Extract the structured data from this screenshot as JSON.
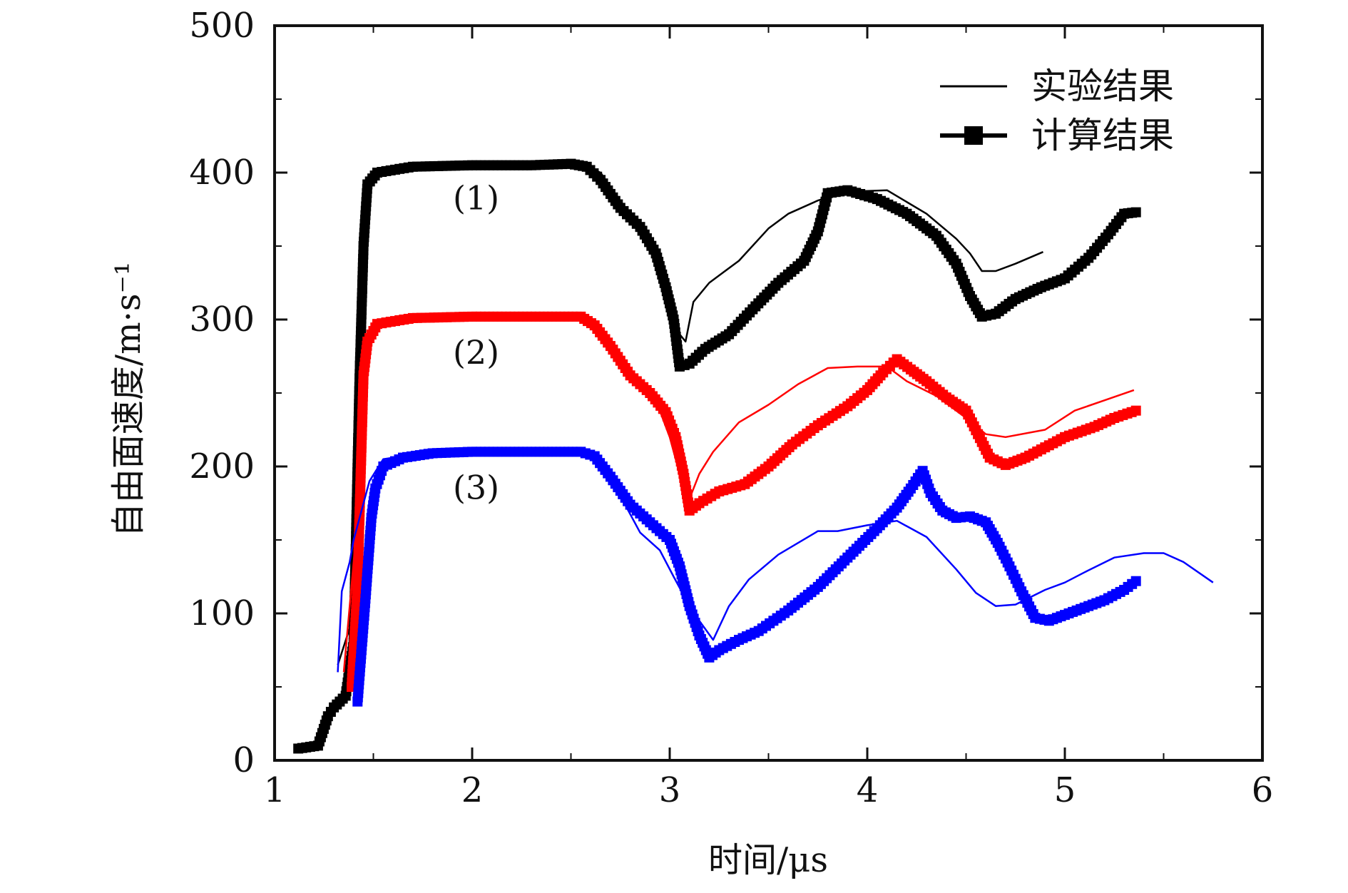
{
  "chart_data": {
    "type": "line",
    "title": "",
    "xlabel": "时间/μs",
    "ylabel": "自由面速度/m·s⁻¹",
    "xlim": [
      1,
      6
    ],
    "ylim": [
      0,
      500
    ],
    "x_ticks": [
      "1",
      "2",
      "3",
      "4",
      "5",
      "6"
    ],
    "y_ticks": [
      "0",
      "100",
      "200",
      "300",
      "400",
      "500"
    ],
    "grid": false,
    "legend_position": "top-right",
    "legend": [
      {
        "label": "实验结果",
        "style": "line"
      },
      {
        "label": "计算结果",
        "style": "line-square-markers"
      }
    ],
    "curve_labels": [
      {
        "text": "(1)",
        "x": 2.02,
        "y": 375
      },
      {
        "text": "(2)",
        "x": 2.02,
        "y": 270
      },
      {
        "text": "(3)",
        "x": 2.02,
        "y": 178
      }
    ],
    "series": [
      {
        "name": "(1) 实验结果",
        "kind": "experiment",
        "color": "#000000",
        "points": [
          [
            1.32,
            65
          ],
          [
            1.38,
            90
          ],
          [
            1.41,
            230
          ],
          [
            1.44,
            330
          ],
          [
            1.46,
            385
          ],
          [
            1.5,
            398
          ],
          [
            1.7,
            404
          ],
          [
            2.0,
            405
          ],
          [
            2.4,
            405
          ],
          [
            2.55,
            406
          ],
          [
            2.65,
            400
          ],
          [
            2.78,
            375
          ],
          [
            2.92,
            350
          ],
          [
            3.0,
            318
          ],
          [
            3.05,
            290
          ],
          [
            3.08,
            285
          ],
          [
            3.12,
            312
          ],
          [
            3.2,
            325
          ],
          [
            3.35,
            340
          ],
          [
            3.5,
            362
          ],
          [
            3.6,
            372
          ],
          [
            3.75,
            381
          ],
          [
            3.9,
            387
          ],
          [
            4.1,
            388
          ],
          [
            4.3,
            372
          ],
          [
            4.45,
            355
          ],
          [
            4.52,
            345
          ],
          [
            4.58,
            333
          ],
          [
            4.65,
            333
          ],
          [
            4.75,
            338
          ],
          [
            4.89,
            346
          ]
        ]
      },
      {
        "name": "(1) 计算结果",
        "kind": "calculation",
        "color": "#000000",
        "points": [
          [
            1.12,
            8
          ],
          [
            1.22,
            10
          ],
          [
            1.27,
            30
          ],
          [
            1.3,
            36
          ],
          [
            1.36,
            44
          ],
          [
            1.4,
            80
          ],
          [
            1.43,
            260
          ],
          [
            1.45,
            350
          ],
          [
            1.47,
            392
          ],
          [
            1.52,
            400
          ],
          [
            1.7,
            404
          ],
          [
            2.0,
            405
          ],
          [
            2.3,
            405
          ],
          [
            2.5,
            406
          ],
          [
            2.58,
            404
          ],
          [
            2.65,
            395
          ],
          [
            2.75,
            376
          ],
          [
            2.85,
            363
          ],
          [
            2.93,
            345
          ],
          [
            2.98,
            322
          ],
          [
            3.02,
            300
          ],
          [
            3.05,
            268
          ],
          [
            3.1,
            270
          ],
          [
            3.18,
            280
          ],
          [
            3.3,
            290
          ],
          [
            3.42,
            307
          ],
          [
            3.55,
            325
          ],
          [
            3.68,
            340
          ],
          [
            3.75,
            360
          ],
          [
            3.8,
            386
          ],
          [
            3.9,
            388
          ],
          [
            4.05,
            382
          ],
          [
            4.2,
            372
          ],
          [
            4.35,
            357
          ],
          [
            4.45,
            338
          ],
          [
            4.52,
            316
          ],
          [
            4.58,
            302
          ],
          [
            4.65,
            304
          ],
          [
            4.75,
            314
          ],
          [
            4.88,
            322
          ],
          [
            5.0,
            328
          ],
          [
            5.12,
            342
          ],
          [
            5.22,
            358
          ],
          [
            5.3,
            372
          ],
          [
            5.36,
            373
          ]
        ]
      },
      {
        "name": "(2) 实验结果",
        "kind": "experiment",
        "color": "#ff0000",
        "points": [
          [
            1.35,
            60
          ],
          [
            1.41,
            150
          ],
          [
            1.44,
            270
          ],
          [
            1.47,
            292
          ],
          [
            1.55,
            300
          ],
          [
            1.8,
            302
          ],
          [
            2.2,
            302
          ],
          [
            2.55,
            301
          ],
          [
            2.65,
            290
          ],
          [
            2.75,
            268
          ],
          [
            2.88,
            250
          ],
          [
            2.95,
            238
          ],
          [
            3.0,
            220
          ],
          [
            3.05,
            195
          ],
          [
            3.1,
            178
          ],
          [
            3.15,
            195
          ],
          [
            3.22,
            210
          ],
          [
            3.35,
            230
          ],
          [
            3.5,
            242
          ],
          [
            3.65,
            256
          ],
          [
            3.8,
            267
          ],
          [
            3.95,
            268
          ],
          [
            4.1,
            268
          ],
          [
            4.2,
            258
          ],
          [
            4.35,
            248
          ],
          [
            4.5,
            233
          ],
          [
            4.6,
            222
          ],
          [
            4.7,
            220
          ],
          [
            4.9,
            225
          ],
          [
            5.05,
            238
          ],
          [
            5.2,
            245
          ],
          [
            5.35,
            252
          ]
        ]
      },
      {
        "name": "(2) 计算结果",
        "kind": "calculation",
        "color": "#ff0000",
        "points": [
          [
            1.39,
            50
          ],
          [
            1.42,
            120
          ],
          [
            1.45,
            262
          ],
          [
            1.47,
            285
          ],
          [
            1.52,
            297
          ],
          [
            1.7,
            301
          ],
          [
            2.0,
            302
          ],
          [
            2.3,
            302
          ],
          [
            2.55,
            302
          ],
          [
            2.62,
            296
          ],
          [
            2.7,
            282
          ],
          [
            2.8,
            262
          ],
          [
            2.9,
            250
          ],
          [
            2.98,
            237
          ],
          [
            3.03,
            220
          ],
          [
            3.07,
            195
          ],
          [
            3.1,
            170
          ],
          [
            3.15,
            175
          ],
          [
            3.25,
            183
          ],
          [
            3.38,
            188
          ],
          [
            3.5,
            200
          ],
          [
            3.62,
            215
          ],
          [
            3.75,
            228
          ],
          [
            3.9,
            241
          ],
          [
            4.0,
            252
          ],
          [
            4.08,
            264
          ],
          [
            4.15,
            273
          ],
          [
            4.22,
            266
          ],
          [
            4.3,
            258
          ],
          [
            4.4,
            247
          ],
          [
            4.5,
            238
          ],
          [
            4.56,
            222
          ],
          [
            4.62,
            206
          ],
          [
            4.7,
            201
          ],
          [
            4.8,
            206
          ],
          [
            4.9,
            213
          ],
          [
            5.0,
            220
          ],
          [
            5.15,
            227
          ],
          [
            5.25,
            233
          ],
          [
            5.36,
            238
          ]
        ]
      },
      {
        "name": "(3) 实验结果",
        "kind": "experiment",
        "color": "#0000ff",
        "points": [
          [
            1.32,
            60
          ],
          [
            1.34,
            115
          ],
          [
            1.38,
            135
          ],
          [
            1.4,
            150
          ],
          [
            1.44,
            170
          ],
          [
            1.48,
            190
          ],
          [
            1.55,
            205
          ],
          [
            1.8,
            210
          ],
          [
            2.2,
            210
          ],
          [
            2.55,
            210
          ],
          [
            2.65,
            203
          ],
          [
            2.75,
            180
          ],
          [
            2.85,
            155
          ],
          [
            2.95,
            143
          ],
          [
            3.02,
            125
          ],
          [
            3.08,
            110
          ],
          [
            3.15,
            95
          ],
          [
            3.22,
            82
          ],
          [
            3.3,
            105
          ],
          [
            3.4,
            123
          ],
          [
            3.55,
            140
          ],
          [
            3.65,
            148
          ],
          [
            3.75,
            156
          ],
          [
            3.85,
            156
          ],
          [
            4.0,
            160
          ],
          [
            4.15,
            163
          ],
          [
            4.3,
            152
          ],
          [
            4.45,
            130
          ],
          [
            4.55,
            114
          ],
          [
            4.65,
            105
          ],
          [
            4.75,
            106
          ],
          [
            4.9,
            116
          ],
          [
            5.0,
            121
          ],
          [
            5.1,
            128
          ],
          [
            5.25,
            138
          ],
          [
            5.4,
            141
          ],
          [
            5.5,
            141
          ],
          [
            5.6,
            135
          ],
          [
            5.75,
            121
          ]
        ]
      },
      {
        "name": "(3) 计算结果",
        "kind": "calculation",
        "color": "#0000ff",
        "points": [
          [
            1.42,
            40
          ],
          [
            1.46,
            110
          ],
          [
            1.49,
            165
          ],
          [
            1.51,
            185
          ],
          [
            1.55,
            200
          ],
          [
            1.65,
            206
          ],
          [
            1.8,
            209
          ],
          [
            2.0,
            210
          ],
          [
            2.3,
            210
          ],
          [
            2.55,
            210
          ],
          [
            2.62,
            207
          ],
          [
            2.7,
            193
          ],
          [
            2.8,
            174
          ],
          [
            2.9,
            162
          ],
          [
            3.0,
            150
          ],
          [
            3.05,
            132
          ],
          [
            3.1,
            105
          ],
          [
            3.15,
            85
          ],
          [
            3.2,
            70
          ],
          [
            3.25,
            75
          ],
          [
            3.35,
            82
          ],
          [
            3.45,
            88
          ],
          [
            3.6,
            102
          ],
          [
            3.75,
            118
          ],
          [
            3.9,
            138
          ],
          [
            4.05,
            158
          ],
          [
            4.15,
            172
          ],
          [
            4.22,
            185
          ],
          [
            4.28,
            197
          ],
          [
            4.32,
            182
          ],
          [
            4.38,
            170
          ],
          [
            4.45,
            165
          ],
          [
            4.52,
            166
          ],
          [
            4.6,
            162
          ],
          [
            4.66,
            148
          ],
          [
            4.72,
            132
          ],
          [
            4.78,
            115
          ],
          [
            4.85,
            97
          ],
          [
            4.92,
            95
          ],
          [
            5.0,
            99
          ],
          [
            5.1,
            104
          ],
          [
            5.2,
            109
          ],
          [
            5.3,
            116
          ],
          [
            5.36,
            122
          ]
        ]
      }
    ]
  }
}
